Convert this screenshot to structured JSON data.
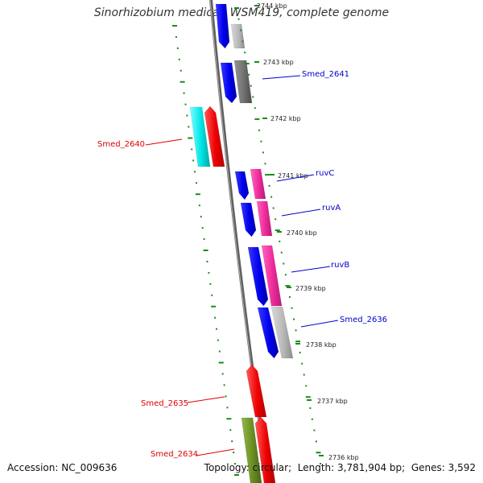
{
  "title": "Sinorhizobium medicae WSM419, complete genome",
  "footer": {
    "accession_label": "Accession:",
    "accession": "NC_009636",
    "topology_label": "Topology:",
    "topology": "circular",
    "length_label": "Length:",
    "length": "3,781,904 bp",
    "genes_label": "Genes:",
    "genes": "3,592"
  },
  "colors": {
    "backbone": "#808080",
    "tick": "#1a8a1a",
    "label_blue": "#0000cc",
    "label_red": "#dd0000"
  },
  "kbp_ticks": [
    "2744 kbp",
    "2743 kbp",
    "2742 kbp",
    "2741 kbp",
    "2740 kbp",
    "2739 kbp",
    "2738 kbp",
    "2737 kbp",
    "2736 kbp"
  ],
  "gene_labels": [
    {
      "text": "Smed_2641",
      "color": "blue"
    },
    {
      "text": "Smed_2640",
      "color": "red"
    },
    {
      "text": "ruvC",
      "color": "blue"
    },
    {
      "text": "ruvA",
      "color": "blue"
    },
    {
      "text": "ruvB",
      "color": "blue"
    },
    {
      "text": "Smed_2636",
      "color": "blue"
    },
    {
      "text": "Smed_2635",
      "color": "red"
    },
    {
      "text": "Smed_2634",
      "color": "red"
    }
  ],
  "features": [
    {
      "track": "inner-blue",
      "color": "#0000ee",
      "name": "feature-2644"
    },
    {
      "track": "outer-grey",
      "color": "#b8b8b8",
      "name": "feature-2644-cds"
    },
    {
      "track": "inner-blue",
      "color": "#0000ee",
      "name": "feature-2641"
    },
    {
      "track": "outer-grey",
      "color": "#707070",
      "name": "feature-2641-cds"
    },
    {
      "track": "inner-cyan",
      "color": "#00e6e6",
      "name": "feature-2640-gene"
    },
    {
      "track": "inner-red",
      "color": "#ee0000",
      "name": "feature-2640-cds"
    },
    {
      "track": "inner-blue",
      "color": "#0000ee",
      "name": "feature-ruvc"
    },
    {
      "track": "outer-pink",
      "color": "#ee2a9a",
      "name": "feature-ruvc-cds"
    },
    {
      "track": "inner-blue",
      "color": "#0000ee",
      "name": "feature-ruva"
    },
    {
      "track": "outer-pink",
      "color": "#ee2a9a",
      "name": "feature-ruva-cds"
    },
    {
      "track": "inner-blue",
      "color": "#0000ee",
      "name": "feature-ruvb"
    },
    {
      "track": "outer-pink",
      "color": "#ee2a9a",
      "name": "feature-ruvb-cds"
    },
    {
      "track": "inner-blue",
      "color": "#0000ee",
      "name": "feature-2636"
    },
    {
      "track": "outer-grey",
      "color": "#b8b8b8",
      "name": "feature-2636-cds"
    },
    {
      "track": "inner-red",
      "color": "#ee0000",
      "name": "feature-2635"
    },
    {
      "track": "inner-olive",
      "color": "#6b8e23",
      "name": "feature-2634-gene"
    },
    {
      "track": "inner-red",
      "color": "#ee0000",
      "name": "feature-2634-cds"
    }
  ]
}
